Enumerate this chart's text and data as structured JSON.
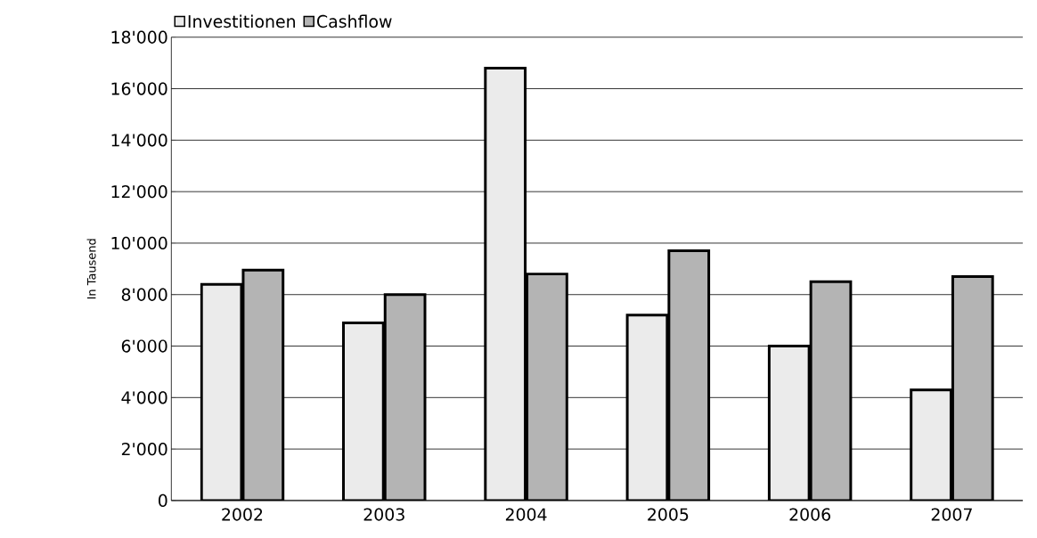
{
  "chart_data": {
    "type": "bar",
    "ylabel": "In Tausend",
    "categories": [
      "2002",
      "2003",
      "2004",
      "2005",
      "2006",
      "2007"
    ],
    "series": [
      {
        "name": "Investitionen",
        "color": "#ebebeb",
        "values": [
          8400,
          6900,
          16800,
          7200,
          6000,
          4300
        ]
      },
      {
        "name": "Cashflow",
        "color": "#b4b4b4",
        "values": [
          8950,
          8000,
          8800,
          9700,
          8500,
          8700
        ]
      }
    ],
    "ylim": [
      0,
      18000
    ],
    "yticks": [
      0,
      {
        "value": 2000,
        "label": "2'000"
      },
      {
        "value": 4000,
        "label": "4'000"
      },
      {
        "value": 6000,
        "label": "6'000"
      },
      {
        "value": 8000,
        "label": "8'000"
      },
      {
        "value": 10000,
        "label": "10'000"
      },
      {
        "value": 12000,
        "label": "12'000"
      },
      {
        "value": 14000,
        "label": "14'000"
      },
      {
        "value": 16000,
        "label": "16'000"
      },
      {
        "value": 18000,
        "label": "18'000"
      }
    ],
    "grid": "y",
    "legend": "top left"
  }
}
